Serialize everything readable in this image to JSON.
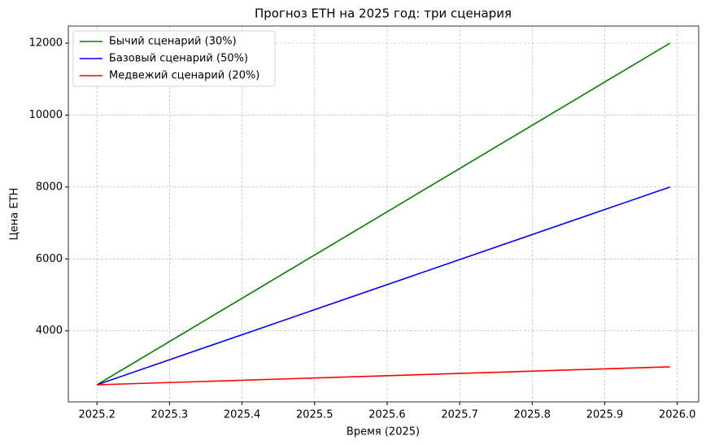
{
  "chart_data": {
    "type": "line",
    "title": "Прогноз ETH на 2025 год: три сценария",
    "xlabel": "Время (2025)",
    "ylabel": "Цена ETH",
    "x": [
      2025.2,
      2025.99
    ],
    "series": [
      {
        "name": "Бычий сценарий (30%)",
        "color": "#008000",
        "values": [
          2500,
          12000
        ]
      },
      {
        "name": "Базовый сценарий (50%)",
        "color": "#0000ff",
        "values": [
          2500,
          8000
        ]
      },
      {
        "name": "Медвежий сценарий (20%)",
        "color": "#ff0000",
        "values": [
          2500,
          3000
        ]
      }
    ],
    "xlim": [
      2025.1605,
      2026.0295
    ],
    "ylim": [
      2025,
      12475
    ],
    "xticks": [
      2025.2,
      2025.3,
      2025.4,
      2025.5,
      2025.6,
      2025.7,
      2025.8,
      2025.9,
      {
        "value": 2026,
        "label": "2026.0"
      }
    ],
    "yticks": [
      4000,
      6000,
      8000,
      10000,
      12000
    ],
    "grid": true,
    "legend": "upper-left"
  }
}
